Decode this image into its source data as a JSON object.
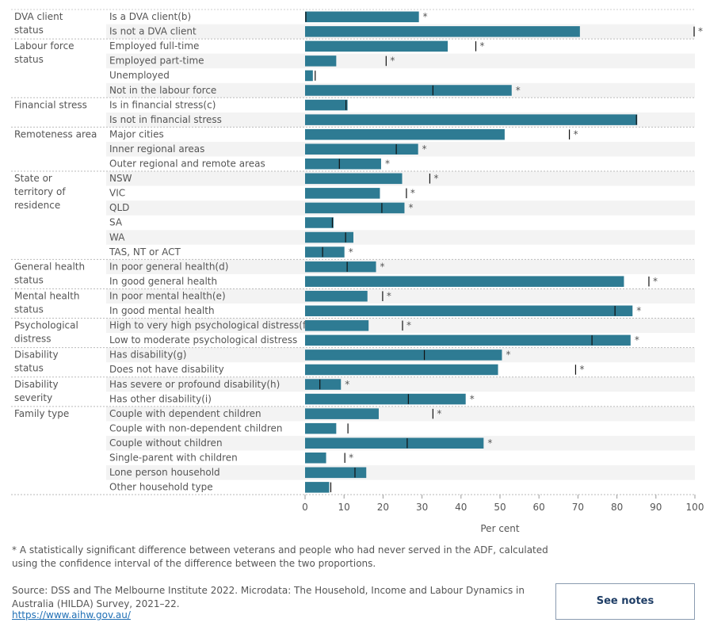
{
  "chart_data": {
    "type": "bar",
    "orientation": "horizontal",
    "xlabel": "Per cent",
    "xlim": [
      0,
      100
    ],
    "xticks": [
      0,
      10,
      20,
      30,
      40,
      50,
      60,
      70,
      80,
      90,
      100
    ],
    "grid": false,
    "colors": {
      "bar": "#2e7b93",
      "marker": "#111111"
    },
    "groups": [
      {
        "label": "DVA client status",
        "rows": [
          {
            "label": "Is a DVA client(b)",
            "value": 29.2,
            "comparison": 0.2,
            "significant": true
          },
          {
            "label": "Is not a DVA client",
            "value": 70.5,
            "comparison": 99.8,
            "significant": true
          }
        ]
      },
      {
        "label": "Labour force status",
        "rows": [
          {
            "label": "Employed full-time",
            "value": 36.6,
            "comparison": 43.8,
            "significant": true
          },
          {
            "label": "Employed part-time",
            "value": 8.0,
            "comparison": 20.8,
            "significant": true
          },
          {
            "label": "Unemployed",
            "value": 2.0,
            "comparison": 2.6,
            "significant": false
          },
          {
            "label": "Not in the labour force",
            "value": 53.0,
            "comparison": 32.8,
            "significant": true
          }
        ]
      },
      {
        "label": "Financial stress",
        "rows": [
          {
            "label": "Is in financial stress(c)",
            "value": 10.9,
            "comparison": 10.5,
            "significant": false
          },
          {
            "label": "Is not in financial stress",
            "value": 85.2,
            "comparison": 85.0,
            "significant": false
          }
        ]
      },
      {
        "label": "Remoteness area",
        "rows": [
          {
            "label": "Major cities",
            "value": 51.2,
            "comparison": 67.8,
            "significant": true
          },
          {
            "label": "Inner regional areas",
            "value": 29.0,
            "comparison": 23.4,
            "significant": true
          },
          {
            "label": "Outer regional and remote areas",
            "value": 19.5,
            "comparison": 8.8,
            "significant": true
          }
        ]
      },
      {
        "label": "State or territory of residence",
        "rows": [
          {
            "label": "NSW",
            "value": 24.9,
            "comparison": 32.0,
            "significant": true
          },
          {
            "label": "VIC",
            "value": 19.2,
            "comparison": 26.0,
            "significant": true
          },
          {
            "label": "QLD",
            "value": 25.5,
            "comparison": 19.7,
            "significant": true
          },
          {
            "label": "SA",
            "value": 7.3,
            "comparison": 7.0,
            "significant": false
          },
          {
            "label": "WA",
            "value": 12.4,
            "comparison": 10.4,
            "significant": false
          },
          {
            "label": "TAS, NT or ACT",
            "value": 10.1,
            "comparison": 4.5,
            "significant": true
          }
        ]
      },
      {
        "label": "General health status",
        "rows": [
          {
            "label": "In poor general health(d)",
            "value": 18.2,
            "comparison": 10.8,
            "significant": true
          },
          {
            "label": "In good general health",
            "value": 81.8,
            "comparison": 88.2,
            "significant": true
          }
        ]
      },
      {
        "label": "Mental health status",
        "rows": [
          {
            "label": "In poor mental health(e)",
            "value": 16.0,
            "comparison": 19.9,
            "significant": true
          },
          {
            "label": "In good mental health",
            "value": 84.0,
            "comparison": 79.5,
            "significant": true
          }
        ]
      },
      {
        "label": "Psychological distress",
        "rows": [
          {
            "label": "High to very high psychological distress(f)",
            "value": 16.3,
            "comparison": 25.0,
            "significant": true
          },
          {
            "label": "Low to moderate psychological distress",
            "value": 83.5,
            "comparison": 73.6,
            "significant": true
          }
        ]
      },
      {
        "label": "Disability status",
        "rows": [
          {
            "label": "Has disability(g)",
            "value": 50.5,
            "comparison": 30.6,
            "significant": true
          },
          {
            "label": "Does not have disability",
            "value": 49.5,
            "comparison": 69.4,
            "significant": true
          }
        ]
      },
      {
        "label": "Disability severity",
        "rows": [
          {
            "label": "Has severe or profound disability(h)",
            "value": 9.2,
            "comparison": 3.8,
            "significant": true
          },
          {
            "label": "Has other disability(i)",
            "value": 41.2,
            "comparison": 26.5,
            "significant": true
          }
        ]
      },
      {
        "label": "Family type",
        "rows": [
          {
            "label": "Couple with dependent children",
            "value": 18.9,
            "comparison": 32.8,
            "significant": true
          },
          {
            "label": "Couple with non-dependent children",
            "value": 8.0,
            "comparison": 11.0,
            "significant": false
          },
          {
            "label": "Couple without children",
            "value": 45.8,
            "comparison": 26.2,
            "significant": true
          },
          {
            "label": "Single-parent with children",
            "value": 5.4,
            "comparison": 10.2,
            "significant": true
          },
          {
            "label": "Lone person household",
            "value": 15.7,
            "comparison": 12.8,
            "significant": false
          },
          {
            "label": "Other household type",
            "value": 6.2,
            "comparison": 6.6,
            "significant": false
          }
        ]
      }
    ]
  },
  "footnotes": {
    "significance": "* A statistically significant difference between veterans and people who had never served in the ADF, calculated using the confidence interval of the difference between the two proportions.",
    "source": "Source: DSS and The Melbourne Institute 2022. Microdata: The Household, Income and Labour Dynamics in Australia (HILDA) Survey, 2021–22.",
    "url": "https://www.aihw.gov.au/"
  },
  "see_notes_button": "See notes"
}
